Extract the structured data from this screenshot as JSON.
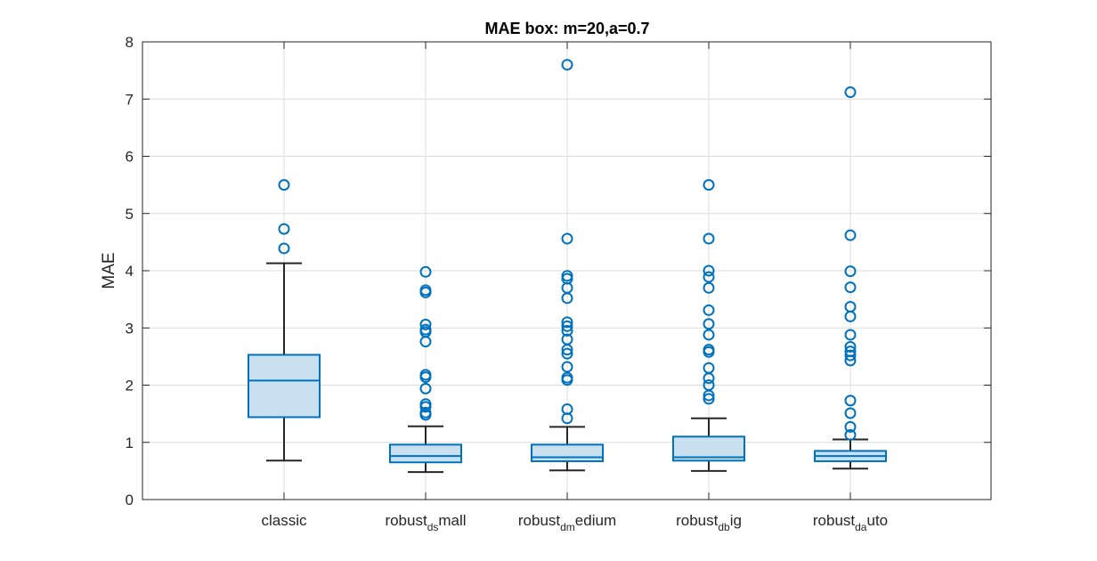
{
  "chart_data": {
    "type": "box",
    "title": "MAE box: m=20,a=0.7",
    "xlabel": "",
    "ylabel": "MAE",
    "ylim": [
      0,
      8
    ],
    "yticks": [
      0,
      1,
      2,
      3,
      4,
      5,
      6,
      7,
      8
    ],
    "grid": true,
    "colors": {
      "box_edge": "#0072BD",
      "box_fill": "#c9e0f0",
      "whisker": "#262626",
      "grid": "#dcdcdc",
      "axis": "#262626"
    },
    "groups": [
      {
        "label_parts": [
          {
            "text": "classic",
            "sub": false
          }
        ],
        "q1": 1.44,
        "median": 2.08,
        "q3": 2.53,
        "whisker_low": 0.68,
        "whisker_high": 4.13,
        "outliers": [
          4.39,
          4.73,
          5.5
        ]
      },
      {
        "label_parts": [
          {
            "text": "robust",
            "sub": false
          },
          {
            "text": "ds",
            "sub": true
          },
          {
            "text": "mall",
            "sub": false
          }
        ],
        "q1": 0.65,
        "median": 0.76,
        "q3": 0.96,
        "whisker_low": 0.48,
        "whisker_high": 1.28,
        "outliers": [
          1.48,
          1.52,
          1.62,
          1.67,
          1.94,
          2.14,
          2.18,
          2.76,
          2.93,
          2.97,
          3.06,
          3.62,
          3.66,
          3.98
        ]
      },
      {
        "label_parts": [
          {
            "text": "robust",
            "sub": false
          },
          {
            "text": "dm",
            "sub": true
          },
          {
            "text": "edium",
            "sub": false
          }
        ],
        "q1": 0.67,
        "median": 0.74,
        "q3": 0.96,
        "whisker_low": 0.51,
        "whisker_high": 1.27,
        "outliers": [
          1.42,
          1.58,
          2.09,
          2.13,
          2.32,
          2.55,
          2.62,
          2.8,
          2.95,
          3.03,
          3.1,
          3.52,
          3.7,
          3.86,
          3.91,
          4.56,
          7.6
        ]
      },
      {
        "label_parts": [
          {
            "text": "robust",
            "sub": false
          },
          {
            "text": "db",
            "sub": true
          },
          {
            "text": "ig",
            "sub": false
          }
        ],
        "q1": 0.68,
        "median": 0.74,
        "q3": 1.1,
        "whisker_low": 0.5,
        "whisker_high": 1.42,
        "outliers": [
          1.76,
          1.82,
          2.0,
          2.12,
          2.3,
          2.58,
          2.62,
          2.88,
          3.07,
          3.31,
          3.7,
          3.89,
          4.0,
          4.56,
          5.5
        ]
      },
      {
        "label_parts": [
          {
            "text": "robust",
            "sub": false
          },
          {
            "text": "da",
            "sub": true
          },
          {
            "text": "uto",
            "sub": false
          }
        ],
        "q1": 0.67,
        "median": 0.76,
        "q3": 0.85,
        "whisker_low": 0.54,
        "whisker_high": 1.05,
        "outliers": [
          1.13,
          1.27,
          1.51,
          1.73,
          2.43,
          2.52,
          2.59,
          2.67,
          2.88,
          3.2,
          3.37,
          3.71,
          3.99,
          4.62,
          7.12
        ]
      }
    ]
  }
}
